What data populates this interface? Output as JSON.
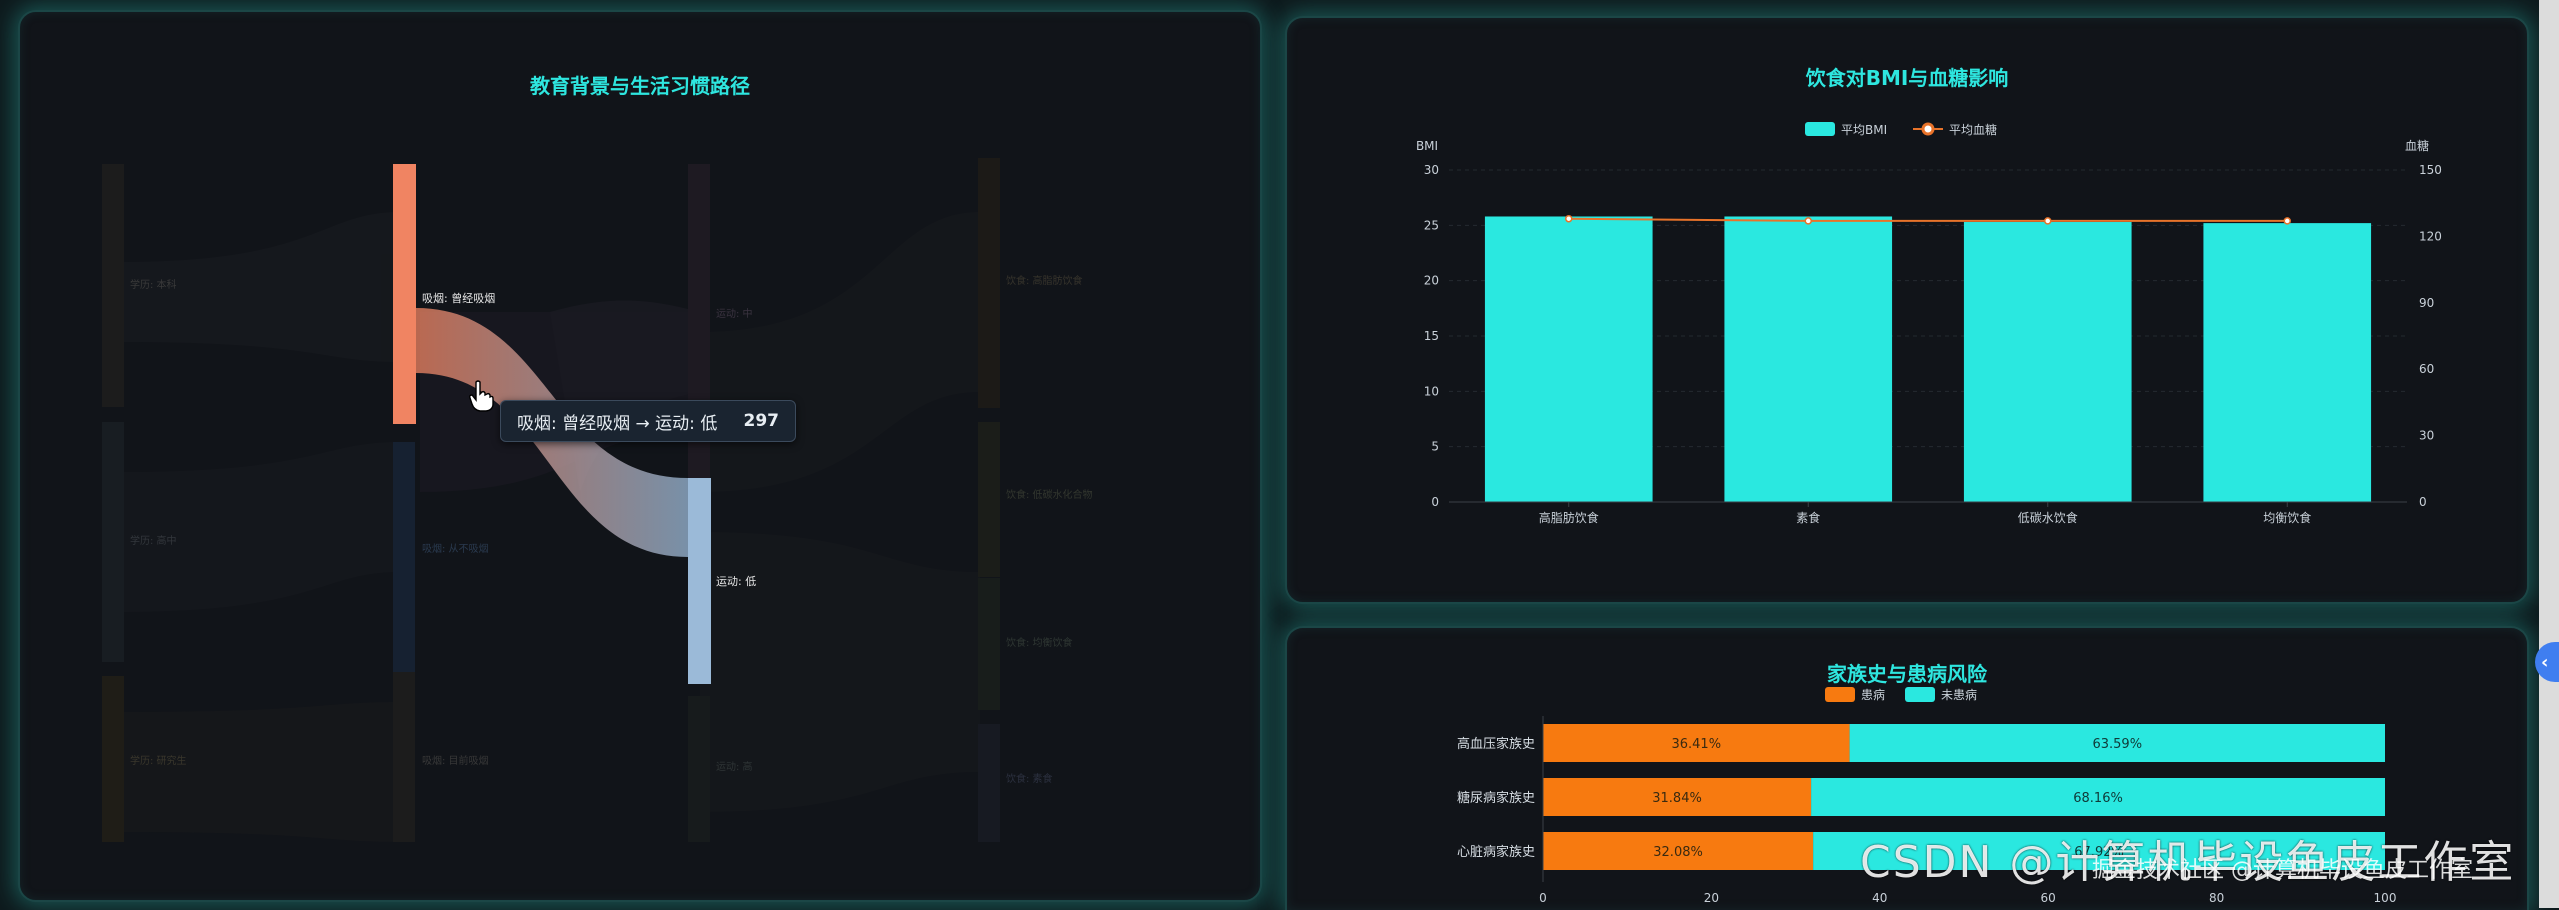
{
  "sankey": {
    "title": "教育背景与生活习惯路径",
    "node_labels": {
      "edu_a": "学历: 本科",
      "edu_b": "学历: 高中",
      "edu_c": "学历: 研究生",
      "smoke_former": "吸烟: 曾经吸烟",
      "smoke_current": "吸烟: 从不吸烟",
      "smoke_never": "吸烟: 目前吸烟",
      "ex_mid": "运动: 中",
      "ex_low": "运动: 低",
      "ex_high": "运动: 高",
      "diet_a": "饮食: 高脂肪饮食",
      "diet_b": "饮食: 低碳水化合物",
      "diet_c": "饮食: 均衡饮食",
      "diet_d": "饮食: 素食"
    },
    "tooltip": {
      "label": "吸烟: 曾经吸烟 → 运动: 低",
      "value": "297"
    }
  },
  "chart_data": [
    {
      "type": "bar",
      "title": "饮食对BMI与血糖影响",
      "categories": [
        "高脂肪饮食",
        "素食",
        "低碳水饮食",
        "均衡饮食"
      ],
      "series": [
        {
          "name": "平均BMI",
          "kind": "bar",
          "axis": "left",
          "values": [
            25.8,
            25.8,
            25.3,
            25.2
          ]
        },
        {
          "name": "平均血糖",
          "kind": "line",
          "axis": "right",
          "values": [
            128,
            127,
            127,
            127
          ]
        }
      ],
      "ylabel": "BMI",
      "y2label": "血糖",
      "ylim": [
        0,
        30
      ],
      "y2lim": [
        0,
        150
      ],
      "yticks": [
        "0",
        "5",
        "10",
        "15",
        "20",
        "25",
        "30"
      ],
      "y2ticks": [
        "0",
        "30",
        "60",
        "90",
        "120",
        "150"
      ],
      "legend": "top-center"
    },
    {
      "type": "bar",
      "orientation": "horizontal-stacked-percent",
      "title": "家族史与患病风险",
      "categories": [
        "高血压家族史",
        "糖尿病家族史",
        "心脏病家族史"
      ],
      "series": [
        {
          "name": "患病",
          "values": [
            36.41,
            31.84,
            32.08
          ],
          "labels": [
            "36.41%",
            "31.84%",
            "32.08%"
          ]
        },
        {
          "name": "未患病",
          "values": [
            63.59,
            68.16,
            67.92
          ],
          "labels": [
            "63.59%",
            "68.16%",
            "67.92%"
          ]
        }
      ],
      "xticks": [
        "0",
        "20",
        "40",
        "60",
        "80",
        "100"
      ],
      "xlim": [
        0,
        100
      ],
      "legend": "top-center"
    }
  ],
  "colors": {
    "accent": "#2ee6df",
    "bar_bmi": "#2ae8e0",
    "line_glucose": "#e8732a",
    "sick": "#f77a10",
    "healthy": "#2ae8e0",
    "smoke_former": "#f08462",
    "ex_low": "#9bbad8"
  },
  "watermark": {
    "main": "CSDN @计算机毕设鱼皮工作室",
    "sub": "掘金技术社区 @计算机毕设鱼皮工作室"
  }
}
